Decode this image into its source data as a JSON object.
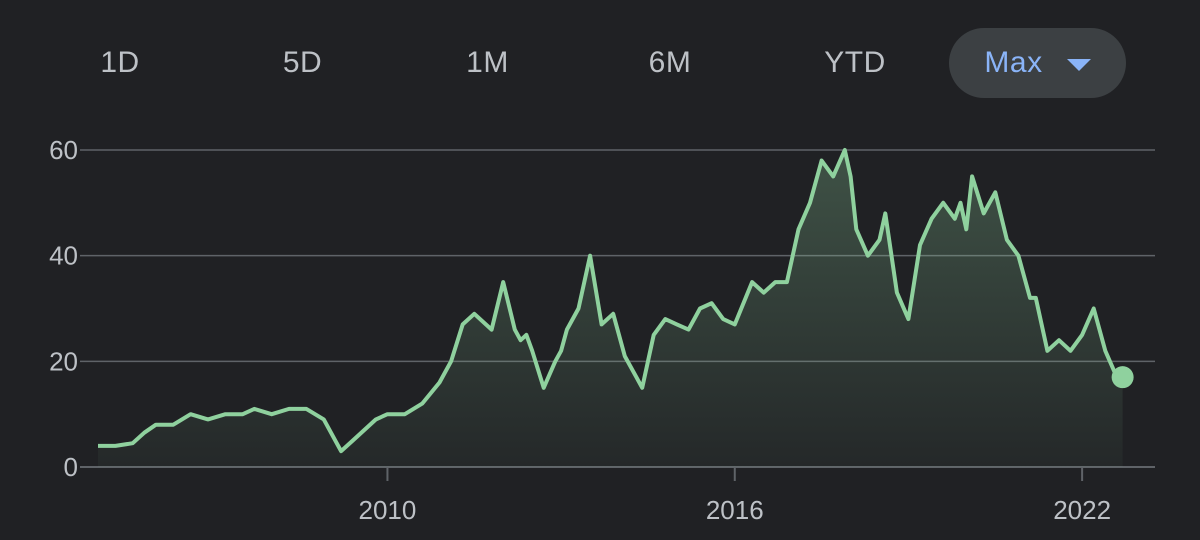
{
  "range_selector": {
    "options": [
      "1D",
      "5D",
      "1M",
      "6M",
      "YTD",
      "Max"
    ],
    "selected": "Max"
  },
  "colors": {
    "background": "#202124",
    "line": "#8fd19e",
    "grid": "#5f6368",
    "selected_bg": "#3c4043",
    "selected_text": "#8ab4f8"
  },
  "chart_data": {
    "type": "area",
    "title": "",
    "xlabel": "",
    "ylabel": "",
    "xlim": [
      2005.0,
      2023.0
    ],
    "ylim": [
      0,
      60
    ],
    "y_ticks": [
      0,
      20,
      40,
      60
    ],
    "x_ticks": [
      2010,
      2016,
      2022
    ],
    "grid": true,
    "series": [
      {
        "x": [
          2005.0,
          2005.3,
          2005.6,
          2005.8,
          2006.0,
          2006.3,
          2006.6,
          2006.9,
          2007.2,
          2007.5,
          2007.7,
          2008.0,
          2008.3,
          2008.6,
          2008.9,
          2009.1,
          2009.2,
          2009.3,
          2009.4,
          2009.6,
          2009.8,
          2010.0,
          2010.3,
          2010.6,
          2010.9,
          2011.1,
          2011.3,
          2011.5,
          2011.8,
          2012.0,
          2012.2,
          2012.3,
          2012.4,
          2012.5,
          2012.7,
          2012.9,
          2013.0,
          2013.1,
          2013.3,
          2013.5,
          2013.7,
          2013.9,
          2014.1,
          2014.3,
          2014.4,
          2014.6,
          2014.8,
          2015.0,
          2015.2,
          2015.4,
          2015.6,
          2015.8,
          2016.0,
          2016.3,
          2016.5,
          2016.7,
          2016.9,
          2017.1,
          2017.3,
          2017.5,
          2017.7,
          2017.9,
          2018.0,
          2018.1,
          2018.3,
          2018.5,
          2018.6,
          2018.8,
          2019.0,
          2019.2,
          2019.4,
          2019.6,
          2019.8,
          2019.9,
          2020.0,
          2020.1,
          2020.3,
          2020.5,
          2020.7,
          2020.9,
          2021.1,
          2021.2,
          2021.4,
          2021.6,
          2021.8,
          2022.0,
          2022.2,
          2022.4,
          2022.6,
          2022.7
        ],
        "y": [
          4,
          4,
          4.5,
          6.5,
          8,
          8,
          10,
          9,
          10,
          10,
          11,
          10,
          11,
          11,
          9,
          5,
          3,
          4,
          5,
          7,
          9,
          10,
          10,
          12,
          16,
          20,
          27,
          29,
          26,
          35,
          26,
          24,
          25,
          22,
          15,
          20,
          22,
          26,
          30,
          40,
          27,
          29,
          21,
          17,
          15,
          25,
          28,
          27,
          26,
          30,
          31,
          28,
          27,
          35,
          33,
          35,
          35,
          45,
          50,
          58,
          55,
          60,
          55,
          45,
          40,
          43,
          48,
          33,
          28,
          42,
          47,
          50,
          47,
          50,
          45,
          55,
          48,
          52,
          43,
          40,
          32,
          32,
          22,
          24,
          22,
          25,
          30,
          22,
          17,
          17
        ]
      }
    ]
  }
}
